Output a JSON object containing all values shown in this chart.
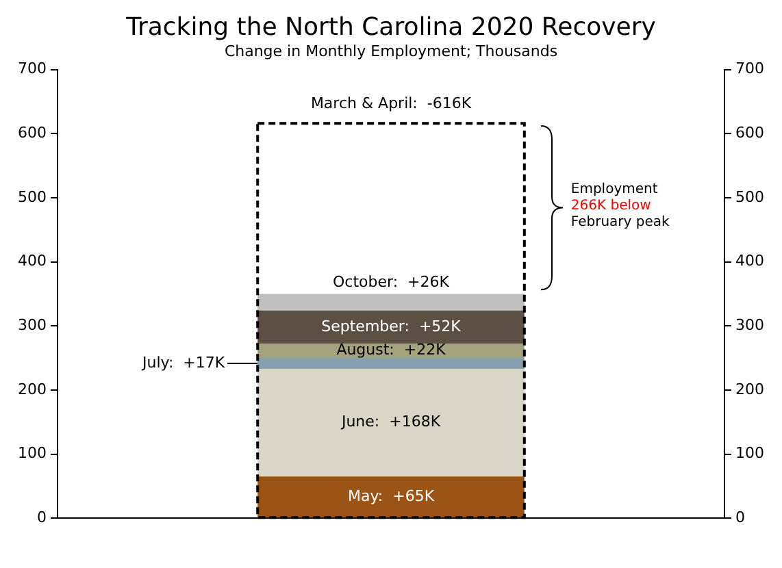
{
  "chart_data": {
    "type": "bar",
    "title": "Tracking the North Carolina 2020 Recovery",
    "subtitle": "Change in Monthly Employment; Thousands",
    "categories": [
      null
    ],
    "series": [
      {
        "color": "#9c5415",
        "values": [
          65
        ],
        "base": [
          0
        ],
        "value_labels": [
          "May:  +65K"
        ]
      },
      {
        "color": "#d9d5c7",
        "values": [
          168
        ],
        "base": [
          65
        ],
        "value_labels": [
          "June:  +168K"
        ]
      },
      {
        "color": "#87a0b0",
        "values": [
          17
        ],
        "base": [
          233
        ],
        "value_labels": [
          "July:  +17K"
        ]
      },
      {
        "color": "#a3a47e",
        "values": [
          22
        ],
        "base": [
          250
        ],
        "value_labels": [
          "August:  +22K"
        ]
      },
      {
        "color": "#5c4f44",
        "values": [
          52
        ],
        "base": [
          272
        ],
        "value_labels": [
          "September:  +52K"
        ]
      },
      {
        "color": "#c0bfbf",
        "values": [
          26
        ],
        "base": [
          324
        ],
        "value_labels": [
          "October:  +26K"
        ]
      },
      {
        "color": "#000000",
        "values": [
          616
        ],
        "base": [
          0
        ],
        "line_style": "dashed",
        "value_labels": [
          "March & April:  -616K"
        ]
      }
    ],
    "annotations": [
      "Employment\n266K below\nFebruary peak"
    ],
    "ylim": [
      0,
      700
    ],
    "yticks": [
      0,
      100,
      200,
      300,
      400,
      500,
      600,
      700
    ],
    "y2lim": [
      0,
      700
    ],
    "y2ticks": [
      0,
      100,
      200,
      300,
      400,
      500,
      600,
      700
    ],
    "grid": false,
    "legend": false
  }
}
